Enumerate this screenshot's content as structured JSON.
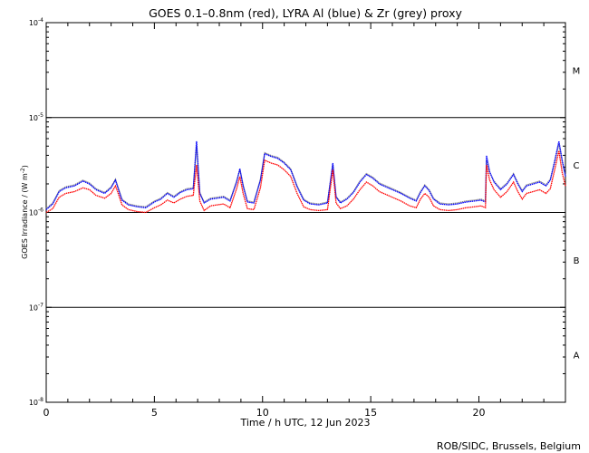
{
  "chart_data": {
    "type": "line",
    "title": "GOES 0.1–0.8nm (red), LYRA Al (blue) & Zr (grey) proxy",
    "xlabel": "Time / h UTC, 12 Jun 2023",
    "ylabel_main": "GOES Irradiance / (W m",
    "ylabel_exp": "-2",
    "ylabel_close": ")",
    "credit": "ROB/SIDC, Brussels, Belgium",
    "xlim": [
      0,
      24
    ],
    "xticks": [
      0,
      5,
      10,
      15,
      20
    ],
    "ylim_log10": [
      -8,
      -4
    ],
    "y_scale": "log",
    "yticks": [
      {
        "exp": -8,
        "text": "10",
        "sup": "-8"
      },
      {
        "exp": -7,
        "text": "10",
        "sup": "-7"
      },
      {
        "exp": -6,
        "text": "10",
        "sup": "-6"
      },
      {
        "exp": -5,
        "text": "10",
        "sup": "-5"
      },
      {
        "exp": -4,
        "text": "10",
        "sup": "-4"
      }
    ],
    "class_lines_log10": [
      -7,
      -6,
      -5
    ],
    "flare_classes": [
      {
        "label": "A",
        "log10": -7.5
      },
      {
        "label": "B",
        "log10": -6.5
      },
      {
        "label": "C",
        "log10": -5.5
      },
      {
        "label": "M",
        "log10": -4.5
      }
    ],
    "series": [
      {
        "name": "GOES 0.1–0.8nm",
        "color": "#ff0000",
        "x": [
          0,
          0.3,
          0.6,
          0.9,
          1.3,
          1.7,
          2.0,
          2.3,
          2.7,
          3.0,
          3.2,
          3.3,
          3.5,
          3.8,
          4.2,
          4.6,
          5.0,
          5.3,
          5.6,
          5.9,
          6.2,
          6.5,
          6.8,
          6.95,
          7.1,
          7.3,
          7.6,
          7.9,
          8.2,
          8.5,
          8.8,
          8.95,
          9.1,
          9.3,
          9.6,
          9.9,
          10.1,
          10.4,
          10.7,
          11.0,
          11.3,
          11.6,
          11.9,
          12.2,
          12.6,
          13.0,
          13.25,
          13.4,
          13.6,
          13.9,
          14.2,
          14.5,
          14.8,
          15.1,
          15.4,
          15.8,
          16.1,
          16.4,
          16.8,
          17.1,
          17.3,
          17.5,
          17.7,
          17.9,
          18.2,
          18.6,
          19.0,
          19.4,
          19.8,
          20.1,
          20.3,
          20.35,
          20.5,
          20.7,
          21.0,
          21.3,
          21.6,
          21.8,
          22.0,
          22.2,
          22.5,
          22.8,
          23.1,
          23.3,
          23.5,
          23.7,
          23.85,
          24.0
        ],
        "y_log10": [
          -6.0,
          -5.96,
          -5.84,
          -5.8,
          -5.78,
          -5.74,
          -5.76,
          -5.82,
          -5.85,
          -5.8,
          -5.72,
          -5.78,
          -5.92,
          -5.97,
          -5.99,
          -6.0,
          -5.95,
          -5.92,
          -5.87,
          -5.9,
          -5.86,
          -5.83,
          -5.82,
          -5.5,
          -5.88,
          -5.98,
          -5.93,
          -5.92,
          -5.91,
          -5.95,
          -5.75,
          -5.62,
          -5.8,
          -5.96,
          -5.97,
          -5.74,
          -5.45,
          -5.48,
          -5.5,
          -5.55,
          -5.62,
          -5.8,
          -5.94,
          -5.97,
          -5.98,
          -5.97,
          -5.55,
          -5.9,
          -5.96,
          -5.93,
          -5.86,
          -5.76,
          -5.68,
          -5.72,
          -5.78,
          -5.82,
          -5.85,
          -5.88,
          -5.93,
          -5.95,
          -5.86,
          -5.8,
          -5.84,
          -5.93,
          -5.97,
          -5.98,
          -5.97,
          -5.95,
          -5.94,
          -5.93,
          -5.95,
          -5.5,
          -5.66,
          -5.76,
          -5.84,
          -5.78,
          -5.68,
          -5.78,
          -5.86,
          -5.8,
          -5.78,
          -5.76,
          -5.8,
          -5.75,
          -5.55,
          -5.35,
          -5.58,
          -5.72
        ]
      },
      {
        "name": "LYRA Al",
        "color": "#0000ff",
        "x": [
          0,
          0.3,
          0.6,
          0.9,
          1.3,
          1.7,
          2.0,
          2.3,
          2.7,
          3.0,
          3.2,
          3.3,
          3.5,
          3.8,
          4.2,
          4.6,
          5.0,
          5.3,
          5.6,
          5.9,
          6.2,
          6.5,
          6.8,
          6.95,
          7.1,
          7.3,
          7.6,
          7.9,
          8.2,
          8.5,
          8.8,
          8.95,
          9.1,
          9.3,
          9.6,
          9.9,
          10.1,
          10.4,
          10.7,
          11.0,
          11.3,
          11.6,
          11.9,
          12.2,
          12.6,
          13.0,
          13.25,
          13.4,
          13.6,
          13.9,
          14.2,
          14.5,
          14.8,
          15.1,
          15.4,
          15.8,
          16.1,
          16.4,
          16.8,
          17.1,
          17.3,
          17.5,
          17.7,
          17.9,
          18.2,
          18.6,
          19.0,
          19.4,
          19.8,
          20.1,
          20.3,
          20.35,
          20.5,
          20.7,
          21.0,
          21.3,
          21.6,
          21.8,
          22.0,
          22.2,
          22.5,
          22.8,
          23.1,
          23.3,
          23.5,
          23.7,
          23.85,
          24.0
        ],
        "y_log10": [
          -5.97,
          -5.91,
          -5.78,
          -5.74,
          -5.72,
          -5.67,
          -5.7,
          -5.76,
          -5.8,
          -5.74,
          -5.66,
          -5.73,
          -5.87,
          -5.92,
          -5.94,
          -5.95,
          -5.89,
          -5.86,
          -5.8,
          -5.84,
          -5.79,
          -5.76,
          -5.75,
          -5.25,
          -5.8,
          -5.9,
          -5.86,
          -5.85,
          -5.84,
          -5.88,
          -5.68,
          -5.54,
          -5.72,
          -5.89,
          -5.9,
          -5.66,
          -5.38,
          -5.41,
          -5.43,
          -5.48,
          -5.55,
          -5.73,
          -5.87,
          -5.91,
          -5.92,
          -5.9,
          -5.48,
          -5.84,
          -5.9,
          -5.86,
          -5.79,
          -5.68,
          -5.6,
          -5.64,
          -5.7,
          -5.74,
          -5.77,
          -5.8,
          -5.85,
          -5.88,
          -5.79,
          -5.72,
          -5.77,
          -5.86,
          -5.91,
          -5.92,
          -5.91,
          -5.89,
          -5.88,
          -5.87,
          -5.89,
          -5.4,
          -5.57,
          -5.68,
          -5.76,
          -5.7,
          -5.6,
          -5.7,
          -5.78,
          -5.72,
          -5.7,
          -5.68,
          -5.72,
          -5.66,
          -5.46,
          -5.25,
          -5.45,
          -5.62
        ]
      },
      {
        "name": "Zr",
        "color": "#888888",
        "x": [
          0,
          0.3,
          0.6,
          0.9,
          1.3,
          1.7,
          2.0,
          2.3,
          2.7,
          3.0,
          3.2,
          3.3,
          3.5,
          3.8,
          4.2,
          4.6,
          5.0,
          5.3,
          5.6,
          5.9,
          6.2,
          6.5,
          6.8,
          6.95,
          7.1,
          7.3,
          7.6,
          7.9,
          8.2,
          8.5,
          8.8,
          8.95,
          9.1,
          9.3,
          9.6,
          9.9,
          10.1,
          10.4,
          10.7,
          11.0,
          11.3,
          11.6,
          11.9,
          12.2,
          12.6,
          13.0,
          13.25,
          13.4,
          13.6,
          13.9,
          14.2,
          14.5,
          14.8,
          15.1,
          15.4,
          15.8,
          16.1,
          16.4,
          16.8,
          17.1,
          17.3,
          17.5,
          17.7,
          17.9,
          18.2,
          18.6,
          19.0,
          19.4,
          19.8,
          20.1,
          20.3,
          20.35,
          20.5,
          20.7,
          21.0,
          21.3,
          21.6,
          21.8,
          22.0,
          22.2,
          22.5,
          22.8,
          23.1,
          23.3,
          23.5,
          23.7,
          23.85,
          24.0
        ],
        "y_log10": [
          -5.96,
          -5.9,
          -5.77,
          -5.73,
          -5.71,
          -5.66,
          -5.69,
          -5.75,
          -5.79,
          -5.73,
          -5.65,
          -5.72,
          -5.86,
          -5.91,
          -5.93,
          -5.94,
          -5.88,
          -5.85,
          -5.79,
          -5.83,
          -5.78,
          -5.75,
          -5.74,
          -5.3,
          -5.79,
          -5.89,
          -5.85,
          -5.84,
          -5.83,
          -5.87,
          -5.67,
          -5.55,
          -5.71,
          -5.88,
          -5.89,
          -5.65,
          -5.37,
          -5.4,
          -5.42,
          -5.47,
          -5.54,
          -5.72,
          -5.86,
          -5.9,
          -5.91,
          -5.89,
          -5.5,
          -5.83,
          -5.89,
          -5.85,
          -5.78,
          -5.67,
          -5.59,
          -5.63,
          -5.69,
          -5.73,
          -5.76,
          -5.79,
          -5.84,
          -5.87,
          -5.78,
          -5.71,
          -5.76,
          -5.85,
          -5.9,
          -5.91,
          -5.9,
          -5.88,
          -5.87,
          -5.86,
          -5.88,
          -5.45,
          -5.58,
          -5.67,
          -5.75,
          -5.69,
          -5.59,
          -5.69,
          -5.77,
          -5.71,
          -5.69,
          -5.67,
          -5.71,
          -5.65,
          -5.47,
          -5.28,
          -5.46,
          -5.61
        ]
      }
    ]
  }
}
